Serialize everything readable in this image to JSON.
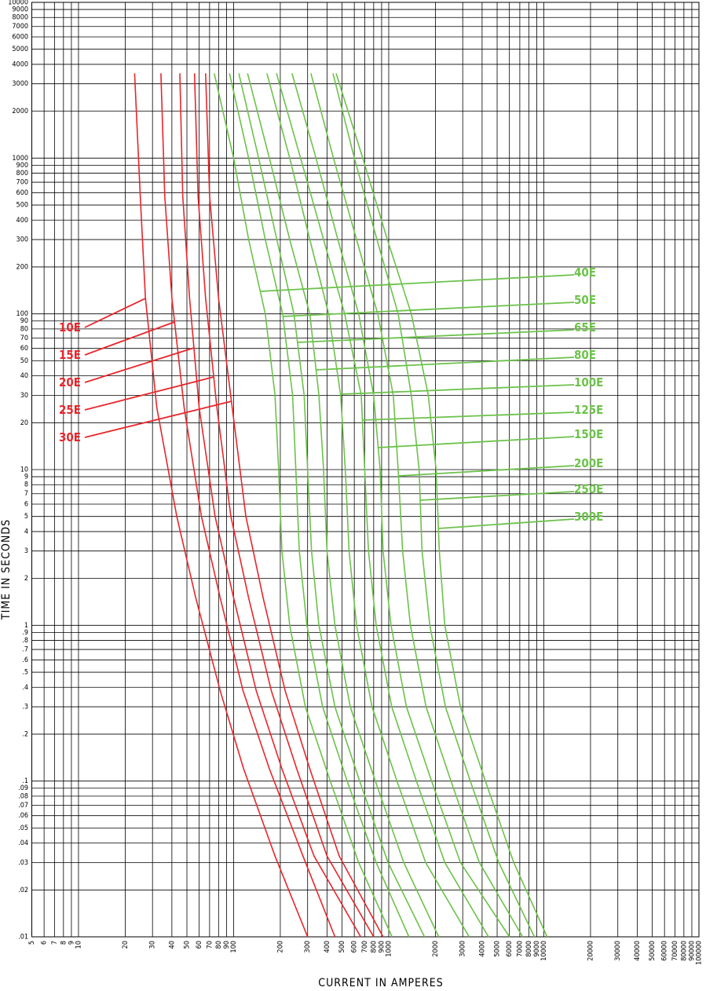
{
  "chart_data": {
    "type": "line",
    "x_label": "CURRENT IN AMPERES",
    "y_label": "TIME IN SECONDS",
    "xlog": true,
    "ylog": true,
    "grid": true,
    "xlim": [
      5,
      100000
    ],
    "ylim": [
      0.01,
      10000
    ],
    "xticks": [
      5,
      6,
      7,
      8,
      9,
      10,
      20,
      30,
      40,
      50,
      60,
      70,
      80,
      90,
      100,
      200,
      300,
      400,
      500,
      600,
      700,
      800,
      900,
      1000,
      2000,
      3000,
      4000,
      5000,
      6000,
      7000,
      8000,
      9000,
      10000,
      20000,
      30000,
      40000,
      50000,
      60000,
      70000,
      80000,
      90000,
      100000
    ],
    "yticks": [
      {
        "value": 0.01,
        "label": ".01"
      },
      {
        "value": 0.02,
        "label": ".02"
      },
      {
        "value": 0.03,
        "label": ".03"
      },
      {
        "value": 0.04,
        "label": ".04"
      },
      {
        "value": 0.05,
        "label": ".05"
      },
      {
        "value": 0.06,
        "label": ".06"
      },
      {
        "value": 0.07,
        "label": ".07"
      },
      {
        "value": 0.08,
        "label": ".08"
      },
      {
        "value": 0.09,
        "label": ".09"
      },
      {
        "value": 0.1,
        "label": ".1"
      },
      {
        "value": 0.2,
        "label": ".2"
      },
      {
        "value": 0.3,
        "label": ".3"
      },
      {
        "value": 0.4,
        "label": ".4"
      },
      {
        "value": 0.5,
        "label": ".5"
      },
      {
        "value": 0.6,
        "label": ".6"
      },
      {
        "value": 0.7,
        "label": ".7"
      },
      {
        "value": 0.8,
        "label": ".8"
      },
      {
        "value": 0.9,
        "label": ".9"
      },
      1,
      2,
      3,
      4,
      5,
      6,
      7,
      8,
      9,
      10,
      20,
      30,
      40,
      50,
      60,
      70,
      80,
      90,
      100,
      200,
      300,
      400,
      500,
      600,
      700,
      800,
      900,
      1000,
      2000,
      3000,
      4000,
      5000,
      6000,
      7000,
      8000,
      9000,
      10000
    ],
    "series": [
      {
        "name": "10E",
        "color": "#e8262b",
        "x": [
          23,
          25,
          27,
          32,
          43,
          57,
          82,
          116,
          185,
          300
        ],
        "values": [
          3500,
          570,
          126,
          25,
          5,
          1.5,
          0.38,
          0.12,
          0.033,
          0.01
        ]
      },
      {
        "name": "15E",
        "color": "#e8262b",
        "x": [
          34,
          36,
          40,
          48,
          62,
          82,
          115,
          170,
          280,
          450
        ],
        "values": [
          3500,
          570,
          126,
          25,
          5,
          1.5,
          0.38,
          0.12,
          0.033,
          0.01
        ]
      },
      {
        "name": "20E",
        "color": "#e8262b",
        "x": [
          45,
          47,
          52,
          60,
          76,
          100,
          140,
          205,
          330,
          660
        ],
        "values": [
          3500,
          570,
          126,
          25,
          5,
          1.5,
          0.38,
          0.12,
          0.033,
          0.01
        ]
      },
      {
        "name": "25E",
        "color": "#e8262b",
        "x": [
          56,
          59,
          66,
          78,
          96,
          125,
          175,
          255,
          400,
          800
        ],
        "values": [
          3500,
          570,
          126,
          25,
          5,
          1.5,
          0.38,
          0.12,
          0.033,
          0.01
        ]
      },
      {
        "name": "30E",
        "color": "#e8262b",
        "x": [
          66,
          70,
          80,
          98,
          120,
          155,
          215,
          310,
          480,
          920
        ],
        "values": [
          3500,
          570,
          126,
          25,
          5,
          1.5,
          0.38,
          0.12,
          0.033,
          0.01
        ]
      },
      {
        "name": "40E",
        "color": "#6cc24a",
        "x": [
          75,
          100,
          125,
          160,
          185,
          195,
          205,
          230,
          290,
          420,
          640,
          1050
        ],
        "values": [
          3500,
          1000,
          300,
          100,
          30,
          10,
          3,
          1,
          0.3,
          0.1,
          0.03,
          0.01
        ]
      },
      {
        "name": "50E",
        "color": "#6cc24a",
        "x": [
          94,
          125,
          160,
          207,
          240,
          252,
          265,
          297,
          375,
          540,
          830,
          1350
        ],
        "values": [
          3500,
          1000,
          300,
          100,
          30,
          10,
          3,
          1,
          0.3,
          0.1,
          0.03,
          0.01
        ]
      },
      {
        "name": "65E",
        "color": "#6cc24a",
        "x": [
          108,
          145,
          190,
          245,
          285,
          300,
          318,
          355,
          450,
          650,
          990,
          1700
        ],
        "values": [
          3500,
          1000,
          300,
          100,
          30,
          10,
          3,
          1,
          0.3,
          0.1,
          0.03,
          0.01
        ]
      },
      {
        "name": "80E",
        "color": "#6cc24a",
        "x": [
          123,
          170,
          230,
          310,
          355,
          380,
          400,
          450,
          565,
          820,
          1250,
          2100
        ],
        "values": [
          3500,
          1000,
          300,
          100,
          30,
          10,
          3,
          1,
          0.3,
          0.1,
          0.03,
          0.01
        ]
      },
      {
        "name": "100E",
        "color": "#6cc24a",
        "x": [
          164,
          230,
          310,
          410,
          490,
          525,
          555,
          620,
          780,
          1130,
          1730,
          3300
        ],
        "values": [
          3500,
          1000,
          300,
          100,
          30,
          10,
          3,
          1,
          0.3,
          0.1,
          0.03,
          0.01
        ]
      },
      {
        "name": "125E",
        "color": "#6cc24a",
        "x": [
          189,
          270,
          380,
          520,
          665,
          700,
          740,
          830,
          1045,
          1510,
          2300,
          4400
        ],
        "values": [
          3500,
          1000,
          300,
          100,
          30,
          10,
          3,
          1,
          0.3,
          0.1,
          0.03,
          0.01
        ]
      },
      {
        "name": "150E",
        "color": "#6cc24a",
        "x": [
          238,
          340,
          470,
          640,
          800,
          880,
          920,
          1035,
          1300,
          1890,
          2900,
          6000
        ],
        "values": [
          3500,
          1000,
          300,
          100,
          30,
          10,
          3,
          1,
          0.3,
          0.1,
          0.03,
          0.01
        ]
      },
      {
        "name": "200E",
        "color": "#6cc24a",
        "x": [
          315,
          440,
          620,
          850,
          1070,
          1150,
          1230,
          1380,
          1740,
          2520,
          3840,
          7300
        ],
        "values": [
          3500,
          1000,
          300,
          100,
          30,
          10,
          3,
          1,
          0.3,
          0.1,
          0.03,
          0.01
        ]
      },
      {
        "name": "250E",
        "color": "#6cc24a",
        "x": [
          437,
          600,
          840,
          1150,
          1400,
          1570,
          1640,
          1840,
          2320,
          3360,
          5120,
          8700
        ],
        "values": [
          3500,
          1000,
          300,
          100,
          30,
          10,
          3,
          1,
          0.3,
          0.1,
          0.03,
          0.01
        ]
      },
      {
        "name": "300E",
        "color": "#6cc24a",
        "x": [
          458,
          680,
          980,
          1400,
          1800,
          2020,
          2120,
          2300,
          2900,
          4200,
          6400,
          10500
        ],
        "values": [
          3500,
          1000,
          300,
          100,
          30,
          10,
          3,
          1,
          0.3,
          0.1,
          0.03,
          0.01
        ]
      }
    ]
  }
}
